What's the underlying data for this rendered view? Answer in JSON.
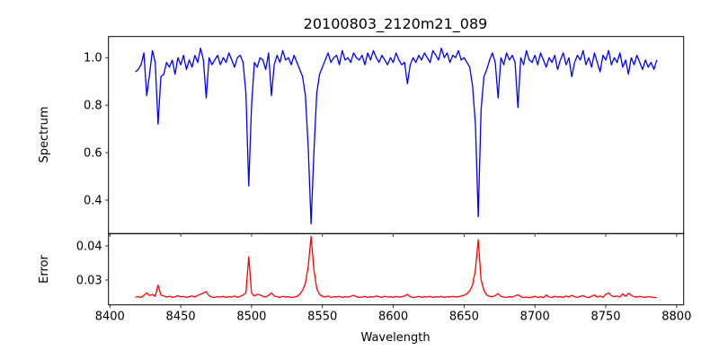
{
  "chart_data": [
    {
      "type": "line",
      "title": "20100803_2120m21_089",
      "xlabel": "",
      "ylabel": "Spectrum",
      "xlim": [
        8399,
        8805
      ],
      "ylim": [
        0.259,
        1.089
      ],
      "yticks": [
        0.4,
        0.6,
        0.8,
        1.0
      ],
      "ytick_labels": [
        "0.4",
        "0.6",
        "0.8",
        "1.0"
      ],
      "color": "#0000ff",
      "x_start": 8418,
      "x_step": 2,
      "series": [
        {
          "name": "Spectrum",
          "values": [
            0.94,
            0.95,
            0.97,
            1.02,
            0.84,
            0.93,
            1.03,
            0.98,
            0.72,
            0.92,
            0.93,
            0.98,
            0.96,
            0.99,
            0.93,
            1.0,
            0.97,
            1.01,
            0.95,
            0.99,
            0.96,
            1.01,
            0.98,
            1.04,
            0.99,
            0.83,
            1.0,
            0.97,
            0.99,
            1.01,
            0.97,
            1.0,
            0.98,
            1.02,
            0.99,
            0.96,
            1.0,
            1.01,
            0.98,
            0.85,
            0.46,
            0.8,
            0.98,
            0.96,
            1.0,
            0.99,
            0.95,
            1.02,
            0.84,
            0.97,
            1.01,
            0.98,
            1.03,
            0.99,
            1.0,
            0.97,
            1.01,
            0.98,
            0.95,
            0.92,
            0.84,
            0.62,
            0.3,
            0.6,
            0.85,
            0.93,
            0.96,
            0.99,
            1.02,
            0.98,
            1.0,
            1.01,
            0.97,
            1.03,
            0.99,
            1.0,
            0.98,
            1.02,
            1.0,
            0.99,
            1.01,
            0.97,
            1.02,
            0.99,
            1.03,
            1.0,
            0.98,
            1.01,
            0.99,
            0.97,
            1.0,
            0.98,
            1.02,
            0.99,
            0.97,
            0.98,
            0.89,
            0.97,
            1.0,
            0.98,
            1.01,
            0.99,
            1.02,
            1.0,
            0.98,
            1.03,
            1.01,
            0.99,
            1.04,
            1.0,
            1.02,
            0.98,
            1.01,
            1.0,
            1.03,
            0.99,
            1.0,
            0.98,
            0.96,
            0.88,
            0.72,
            0.33,
            0.78,
            0.92,
            0.95,
            0.99,
            1.02,
            0.98,
            0.83,
            1.0,
            0.97,
            1.02,
            0.99,
            1.01,
            0.98,
            0.79,
            1.0,
            0.97,
            1.03,
            0.99,
            0.98,
            1.01,
            0.97,
            1.02,
            0.99,
            0.96,
            1.0,
            0.98,
            1.01,
            0.95,
            0.99,
            1.02,
            0.97,
            1.0,
            0.92,
            0.98,
            1.01,
            0.99,
            1.03,
            0.97,
            1.0,
            0.96,
            1.02,
            0.98,
            0.94,
            1.01,
            0.99,
            1.03,
            0.97,
            1.0,
            0.98,
            1.02,
            0.96,
            0.99,
            0.93,
            1.0,
            0.97,
            1.01,
            0.98,
            0.95,
            0.99,
            0.96,
            0.98,
            0.95,
            0.99
          ]
        }
      ]
    },
    {
      "type": "line",
      "title": "",
      "xlabel": "Wavelength",
      "ylabel": "Error",
      "xlim": [
        8399,
        8805
      ],
      "ylim": [
        0.0227,
        0.0436
      ],
      "xticks": [
        8400,
        8450,
        8500,
        8550,
        8600,
        8650,
        8700,
        8750,
        8800
      ],
      "xtick_labels": [
        "8400",
        "8450",
        "8500",
        "8550",
        "8600",
        "8650",
        "8700",
        "8750",
        "8800"
      ],
      "yticks": [
        0.03,
        0.04
      ],
      "ytick_labels": [
        "0.03",
        "0.04"
      ],
      "color": "#ff0000",
      "x_start": 8418,
      "x_step": 2,
      "series": [
        {
          "name": "Error",
          "values": [
            0.025,
            0.0251,
            0.0249,
            0.0255,
            0.0262,
            0.0254,
            0.0258,
            0.0252,
            0.0285,
            0.0256,
            0.0253,
            0.025,
            0.0252,
            0.0249,
            0.0251,
            0.0254,
            0.025,
            0.0252,
            0.0249,
            0.0251,
            0.0253,
            0.025,
            0.0255,
            0.0258,
            0.0262,
            0.0266,
            0.0254,
            0.025,
            0.0249,
            0.0251,
            0.025,
            0.0252,
            0.0249,
            0.0251,
            0.025,
            0.0253,
            0.0249,
            0.0252,
            0.0256,
            0.0262,
            0.0368,
            0.0262,
            0.0253,
            0.0258,
            0.0256,
            0.0252,
            0.025,
            0.0255,
            0.0262,
            0.0253,
            0.0251,
            0.0249,
            0.0252,
            0.025,
            0.0251,
            0.0249,
            0.025,
            0.0252,
            0.0258,
            0.027,
            0.029,
            0.034,
            0.0428,
            0.033,
            0.0275,
            0.0258,
            0.0252,
            0.025,
            0.0253,
            0.0249,
            0.0251,
            0.025,
            0.0252,
            0.0249,
            0.0251,
            0.025,
            0.0252,
            0.0255,
            0.0251,
            0.0249,
            0.025,
            0.0252,
            0.0249,
            0.0251,
            0.025,
            0.0253,
            0.0251,
            0.0249,
            0.0252,
            0.025,
            0.0251,
            0.0249,
            0.0252,
            0.025,
            0.0251,
            0.0253,
            0.0258,
            0.0251,
            0.0249,
            0.025,
            0.0252,
            0.0249,
            0.0251,
            0.025,
            0.0252,
            0.0249,
            0.0251,
            0.025,
            0.0252,
            0.0249,
            0.0251,
            0.025,
            0.0252,
            0.025,
            0.0251,
            0.0253,
            0.0255,
            0.026,
            0.0268,
            0.0285,
            0.033,
            0.0418,
            0.03,
            0.027,
            0.0256,
            0.0252,
            0.0251,
            0.0254,
            0.026,
            0.0252,
            0.025,
            0.0249,
            0.0251,
            0.025,
            0.0253,
            0.0257,
            0.0251,
            0.0249,
            0.025,
            0.0248,
            0.025,
            0.0252,
            0.0249,
            0.0251,
            0.0248,
            0.0256,
            0.025,
            0.0249,
            0.0252,
            0.025,
            0.0251,
            0.0249,
            0.0253,
            0.025,
            0.0255,
            0.0251,
            0.0249,
            0.0252,
            0.0254,
            0.025,
            0.0249,
            0.0252,
            0.0256,
            0.025,
            0.0253,
            0.0249,
            0.0258,
            0.0262,
            0.0254,
            0.0251,
            0.0253,
            0.025,
            0.0259,
            0.0252,
            0.0261,
            0.0255,
            0.0251,
            0.025,
            0.0252,
            0.025,
            0.0249,
            0.0251,
            0.025,
            0.0249,
            0.0248
          ]
        }
      ]
    }
  ]
}
